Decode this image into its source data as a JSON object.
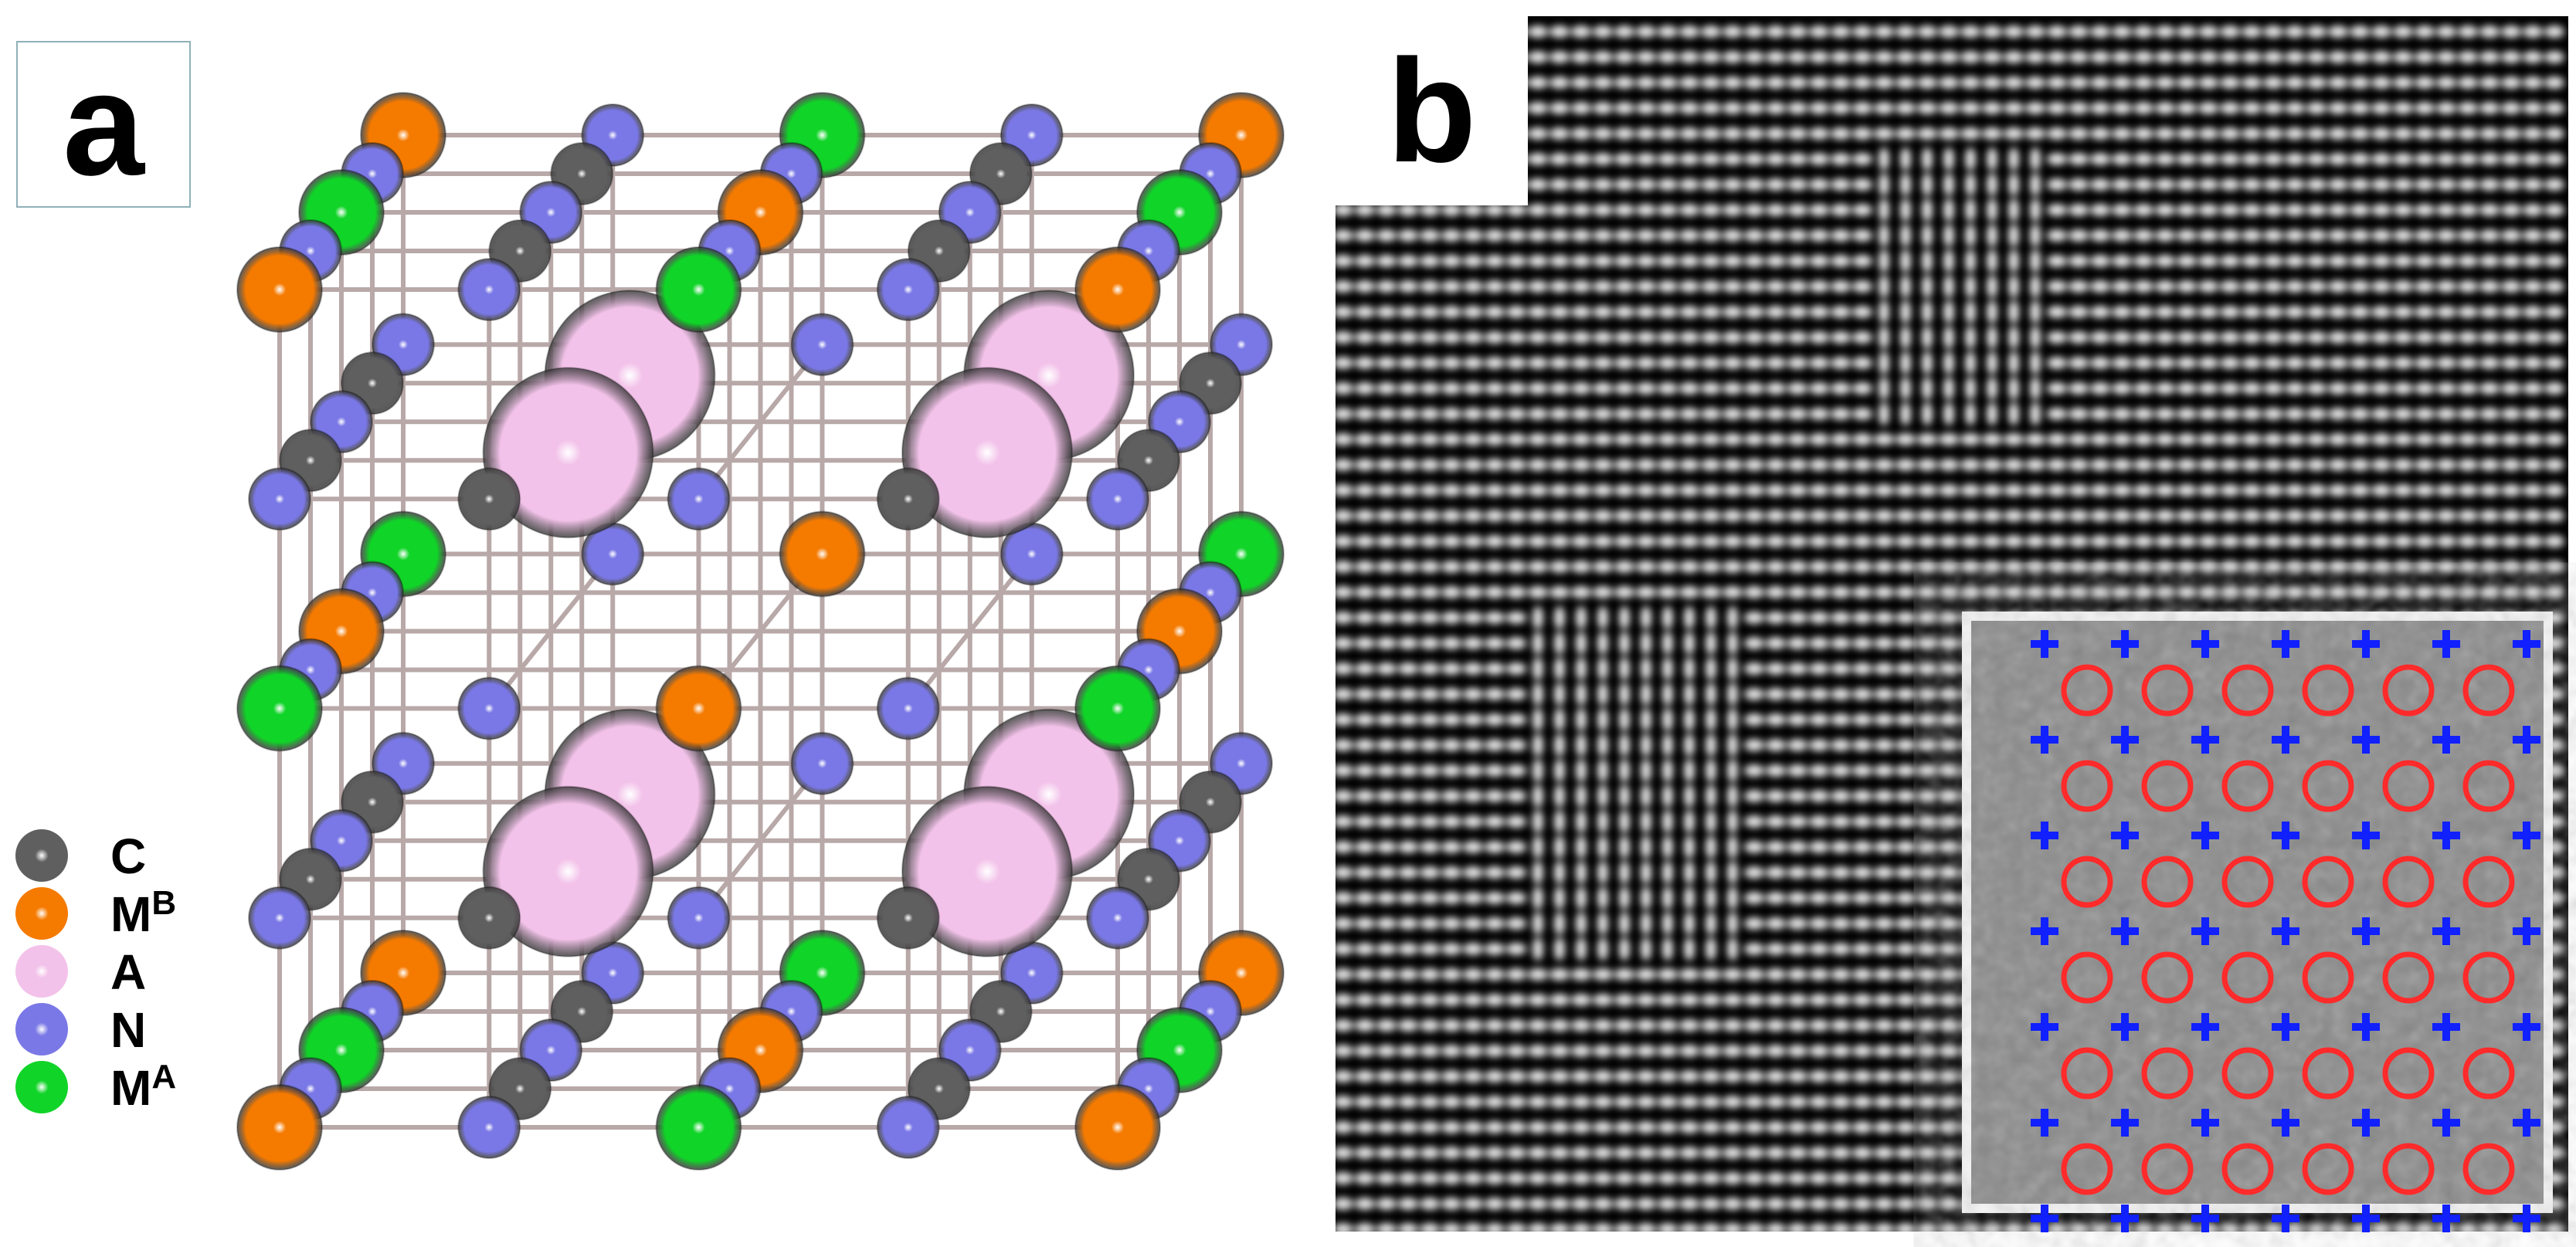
{
  "panel_a": {
    "label": "a",
    "legend": [
      {
        "label": "C",
        "sup": "",
        "color": "#5f5f5f"
      },
      {
        "label": "M",
        "sup": "B",
        "color": "#f57a00"
      },
      {
        "label": "A",
        "sup": "",
        "color": "#f3c2ea"
      },
      {
        "label": "N",
        "sup": "",
        "color": "#7a78e6"
      },
      {
        "label": "M",
        "sup": "A",
        "color": "#10d428"
      }
    ],
    "bond_color": "#b8a8a8"
  },
  "panel_b": {
    "label": "b",
    "inset_marker_colors": {
      "circle": "#ff2a2a",
      "cross": "#1020ff"
    }
  }
}
